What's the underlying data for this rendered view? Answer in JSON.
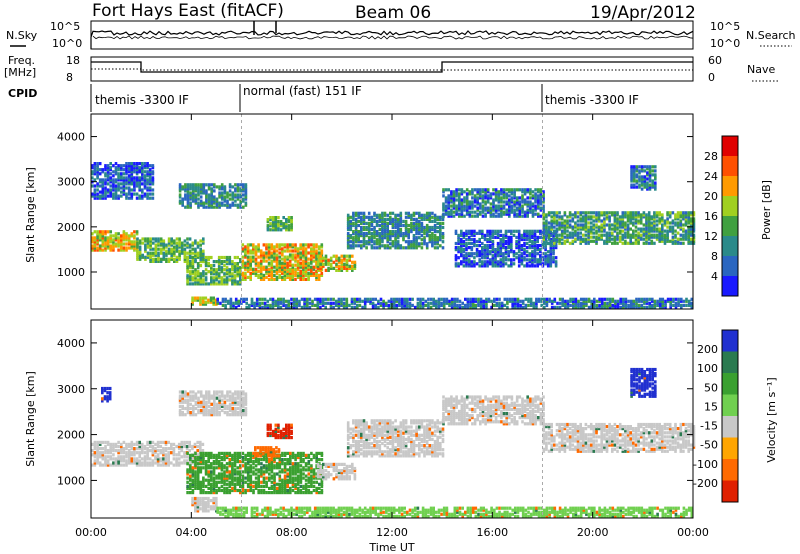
{
  "header": {
    "station": "Fort Hays East (fitACF)",
    "beam": "Beam 06",
    "date": "19/Apr/2012"
  },
  "param_panel": {
    "nsky_label": "N.Sky",
    "nsearch_label": "N.Search",
    "freq_label": "Freq.",
    "freq_unit": "[MHz]",
    "nave_label": "Nave",
    "cpid_label": "CPID",
    "noise_ticks": [
      "10^5",
      "10^0"
    ],
    "freq_ticks": [
      "18",
      "8"
    ],
    "nave_ticks": [
      "60",
      "0"
    ]
  },
  "cpid_segments": [
    {
      "label": "themis -3300 IF",
      "start_h": 0,
      "end_h": 6
    },
    {
      "label": "normal (fast) 151 IF",
      "start_h": 6,
      "end_h": 18
    },
    {
      "label": "themis -3300 IF",
      "start_h": 18,
      "end_h": 24
    }
  ],
  "axes": {
    "xlabel": "Time UT",
    "ylabel": "Slant Range [km]",
    "xticks": [
      "00:00",
      "04:00",
      "08:00",
      "12:00",
      "16:00",
      "20:00",
      "00:00"
    ],
    "yticks": [
      "1000",
      "2000",
      "3000",
      "4000"
    ],
    "xlim_h": [
      0,
      24
    ],
    "ylim_km": [
      180,
      4500
    ]
  },
  "colors": {
    "power": [
      "#1a1aff",
      "#2a66c0",
      "#2a8a8a",
      "#40a040",
      "#a0d020",
      "#ff9a00",
      "#ff5000",
      "#e00000"
    ],
    "velocity": [
      "#2030d0",
      "#2a7a50",
      "#3aa030",
      "#70d050",
      "#c8c8c8",
      "#c8c8c8",
      "#ffa500",
      "#ff6a00",
      "#e02000"
    ]
  },
  "chart_data": [
    {
      "type": "heatmap",
      "title": "Power [dB]",
      "colorbar_label": "Power [dB]",
      "colorbar_ticks": [
        "28",
        "24",
        "20",
        "16",
        "12",
        "8",
        "4"
      ],
      "x_unit": "hours UT",
      "y_unit": "km",
      "regions": [
        {
          "x": [
            0.0,
            1.8
          ],
          "y": [
            1450,
            1900
          ],
          "level": 20
        },
        {
          "x": [
            1.8,
            4.5
          ],
          "y": [
            1200,
            1700
          ],
          "level": 14
        },
        {
          "x": [
            3.5,
            6.2
          ],
          "y": [
            2400,
            2900
          ],
          "level": 10
        },
        {
          "x": [
            3.8,
            6.0
          ],
          "y": [
            700,
            1300
          ],
          "level": 14
        },
        {
          "x": [
            6.0,
            9.2
          ],
          "y": [
            800,
            1600
          ],
          "level": 20
        },
        {
          "x": [
            7.0,
            8.0
          ],
          "y": [
            1900,
            2200
          ],
          "level": 14
        },
        {
          "x": [
            9.0,
            10.5
          ],
          "y": [
            1000,
            1350
          ],
          "level": 20
        },
        {
          "x": [
            10.2,
            14.0
          ],
          "y": [
            1500,
            2300
          ],
          "level": 10
        },
        {
          "x": [
            14.0,
            18.0
          ],
          "y": [
            2200,
            2800
          ],
          "level": 8
        },
        {
          "x": [
            14.5,
            18.5
          ],
          "y": [
            1100,
            1900
          ],
          "level": 6
        },
        {
          "x": [
            18.0,
            24.0
          ],
          "y": [
            1600,
            2300
          ],
          "level": 12
        },
        {
          "x": [
            21.5,
            22.5
          ],
          "y": [
            2800,
            3300
          ],
          "level": 8
        },
        {
          "x": [
            0.0,
            2.5
          ],
          "y": [
            2600,
            3400
          ],
          "level": 6
        },
        {
          "x": [
            4.0,
            5.0
          ],
          "y": [
            250,
            400
          ],
          "level": 18
        },
        {
          "x": [
            5.0,
            24.0
          ],
          "y": [
            180,
            400
          ],
          "level": 8
        }
      ]
    },
    {
      "type": "heatmap",
      "title": "Velocity [m s-1]",
      "colorbar_label": "Velocity [m s⁻¹]",
      "colorbar_ticks": [
        "200",
        "100",
        "50",
        "15",
        "-15",
        "-50",
        "-100",
        "-200"
      ],
      "x_unit": "hours UT",
      "y_unit": "km",
      "regions": [
        {
          "x": [
            0.0,
            4.5
          ],
          "y": [
            1300,
            1800
          ],
          "level": 0
        },
        {
          "x": [
            3.5,
            6.2
          ],
          "y": [
            2400,
            2900
          ],
          "level": 0
        },
        {
          "x": [
            3.8,
            9.2
          ],
          "y": [
            700,
            1600
          ],
          "level": 70
        },
        {
          "x": [
            7.0,
            8.0
          ],
          "y": [
            1900,
            2200
          ],
          "level": -200
        },
        {
          "x": [
            6.5,
            7.5
          ],
          "y": [
            1500,
            1700
          ],
          "level": -100
        },
        {
          "x": [
            9.0,
            10.5
          ],
          "y": [
            1000,
            1350
          ],
          "level": 0
        },
        {
          "x": [
            10.2,
            14.0
          ],
          "y": [
            1500,
            2300
          ],
          "level": 0
        },
        {
          "x": [
            14.0,
            18.0
          ],
          "y": [
            2200,
            2800
          ],
          "level": 0
        },
        {
          "x": [
            18.0,
            24.0
          ],
          "y": [
            1600,
            2200
          ],
          "level": 0
        },
        {
          "x": [
            21.5,
            22.5
          ],
          "y": [
            2800,
            3400
          ],
          "level": 200
        },
        {
          "x": [
            0.4,
            0.8
          ],
          "y": [
            2700,
            3000
          ],
          "level": 200
        },
        {
          "x": [
            4.0,
            5.0
          ],
          "y": [
            300,
            600
          ],
          "level": 0
        },
        {
          "x": [
            5.0,
            24.0
          ],
          "y": [
            180,
            400
          ],
          "level": 30
        }
      ]
    }
  ]
}
